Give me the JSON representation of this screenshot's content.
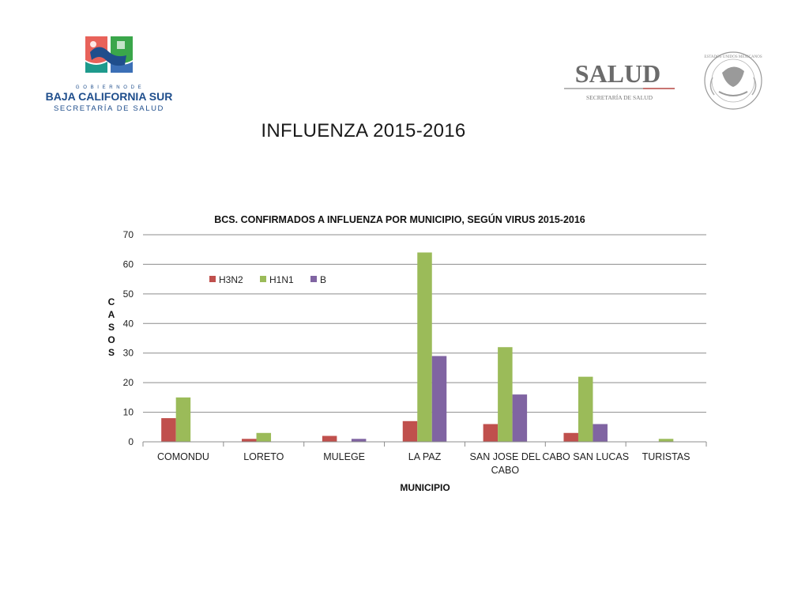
{
  "header": {
    "page_title": "INFLUENZA 2015-2016",
    "left_logo": {
      "icon": "baja-california-sur-shield-icon",
      "gobierno": "G O B I E R N O  D E",
      "state": "BAJA CALIFORNIA SUR",
      "dept": "SECRETARÍA DE SALUD",
      "colors": {
        "navy": "#1f4e8c",
        "teal": "#1e9a8c",
        "coral": "#e8625a",
        "green": "#3aa64a"
      }
    },
    "right_logo": {
      "icon": "mexican-coat-of-arms-icon",
      "brand": "SALUD",
      "sub": "SECRETARÍA DE SALUD",
      "seal_text": "ESTADOS UNIDOS MEXICANOS"
    }
  },
  "chart_data": {
    "type": "bar",
    "title": "BCS. CONFIRMADOS A INFLUENZA POR MUNICIPIO, SEGÚN VIRUS 2015-2016",
    "xlabel": "MUNICIPIO",
    "ylabel": "CASOS",
    "categories": [
      "COMONDU",
      "LORETO",
      "MULEGE",
      "LA PAZ",
      "SAN JOSE DEL CABO",
      "CABO SAN LUCAS",
      "TURISTAS"
    ],
    "series": [
      {
        "name": "H3N2",
        "color": "#c0504d",
        "values": [
          8,
          1,
          2,
          7,
          6,
          3,
          0
        ]
      },
      {
        "name": "H1N1",
        "color": "#9bbb59",
        "values": [
          15,
          3,
          0,
          64,
          32,
          22,
          1
        ]
      },
      {
        "name": "B",
        "color": "#8064a2",
        "values": [
          0,
          0,
          1,
          29,
          16,
          6,
          0
        ]
      }
    ],
    "ylim": [
      0,
      70
    ],
    "yticks": [
      0,
      10,
      20,
      30,
      40,
      50,
      60,
      70
    ],
    "grid": true,
    "legend": "top-left"
  }
}
